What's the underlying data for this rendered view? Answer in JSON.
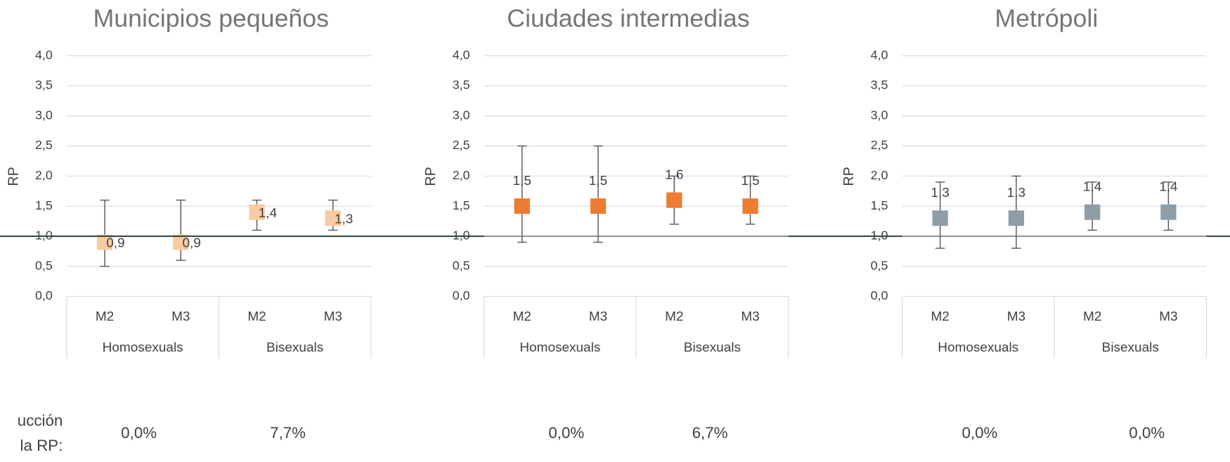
{
  "chart_data": [
    {
      "type": "errorbar",
      "title": "Municipios pequeños",
      "ylabel": "RP",
      "categories": [
        "M2",
        "M3",
        "M2",
        "M3"
      ],
      "groups": [
        "Homosexuals",
        "Bisexuals"
      ],
      "series": [
        {
          "color": "#f8cba0",
          "values": [
            0.9,
            0.9,
            1.4,
            1.3
          ],
          "lower": [
            0.5,
            0.6,
            1.1,
            1.1
          ],
          "upper": [
            1.6,
            1.6,
            1.6,
            1.6
          ],
          "value_labels": [
            "0,9",
            "0,9",
            "1,4",
            "1,3"
          ]
        }
      ],
      "label_position": "right",
      "reference_line": 1,
      "ylim": [
        0,
        4
      ],
      "yticks": [
        {
          "value": 0,
          "label": "0,0"
        },
        {
          "value": 0.5,
          "label": "0,5"
        },
        {
          "value": 1,
          "label": "1,0"
        },
        {
          "value": 1.5,
          "label": "1,5"
        },
        {
          "value": 2,
          "label": "2,0"
        },
        {
          "value": 2.5,
          "label": "2,5"
        },
        {
          "value": 3,
          "label": "3,0"
        },
        {
          "value": 3.5,
          "label": "3,5"
        },
        {
          "value": 4,
          "label": "4,0"
        }
      ],
      "grid": true,
      "reductions": [
        "0,0%",
        "7,7%"
      ]
    },
    {
      "type": "errorbar",
      "title": "Ciudades intermedias",
      "ylabel": "RP",
      "categories": [
        "M2",
        "M3",
        "M2",
        "M3"
      ],
      "groups": [
        "Homosexuals",
        "Bisexuals"
      ],
      "series": [
        {
          "color": "#ed7d31",
          "values": [
            1.5,
            1.5,
            1.6,
            1.5
          ],
          "lower": [
            0.9,
            0.9,
            1.2,
            1.2
          ],
          "upper": [
            2.5,
            2.5,
            2.0,
            2.0
          ],
          "value_labels": [
            "1,5",
            "1,5",
            "1,6",
            "1,5"
          ]
        }
      ],
      "label_position": "above",
      "reference_line": 1,
      "ylim": [
        0,
        4
      ],
      "yticks": [
        {
          "value": 0,
          "label": "0,0"
        },
        {
          "value": 0.5,
          "label": "0,5"
        },
        {
          "value": 1,
          "label": "1,0"
        },
        {
          "value": 1.5,
          "label": "1,5"
        },
        {
          "value": 2,
          "label": "2,0"
        },
        {
          "value": 2.5,
          "label": "2,5"
        },
        {
          "value": 3,
          "label": "3,0"
        },
        {
          "value": 3.5,
          "label": "3,5"
        },
        {
          "value": 4,
          "label": "4,0"
        }
      ],
      "grid": true,
      "reductions": [
        "0,0%",
        "6,7%"
      ]
    },
    {
      "type": "errorbar",
      "title": "Metrópoli",
      "ylabel": "RP",
      "categories": [
        "M2",
        "M3",
        "M2",
        "M3"
      ],
      "groups": [
        "Homosexuals",
        "Bisexuals"
      ],
      "series": [
        {
          "color": "#8e9ea8",
          "values": [
            1.3,
            1.3,
            1.4,
            1.4
          ],
          "lower": [
            0.8,
            0.8,
            1.1,
            1.1
          ],
          "upper": [
            1.9,
            2.0,
            1.9,
            1.9
          ],
          "value_labels": [
            "1,3",
            "1,3",
            "1,4",
            "1,4"
          ]
        }
      ],
      "label_position": "above",
      "reference_line": 1,
      "ylim": [
        0,
        4
      ],
      "yticks": [
        {
          "value": 0,
          "label": "0,0"
        },
        {
          "value": 0.5,
          "label": "0,5"
        },
        {
          "value": 1,
          "label": "1,0"
        },
        {
          "value": 1.5,
          "label": "1,5"
        },
        {
          "value": 2,
          "label": "2,0"
        },
        {
          "value": 2.5,
          "label": "2,5"
        },
        {
          "value": 3,
          "label": "3,0"
        },
        {
          "value": 3.5,
          "label": "3,5"
        },
        {
          "value": 4,
          "label": "4,0"
        }
      ],
      "grid": true,
      "reductions": [
        "0,0%",
        "0,0%"
      ]
    }
  ],
  "reduction_label": [
    "ucción",
    "la RP:"
  ]
}
